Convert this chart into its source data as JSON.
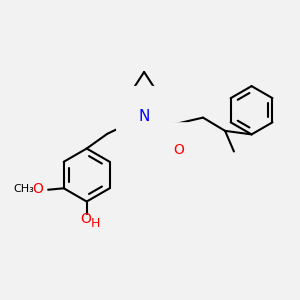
{
  "bg_color": "#f2f2f2",
  "bond_color": "#000000",
  "N_color": "#0000ff",
  "O_color": "#ff0000",
  "line_width": 1.5,
  "font_size_atom": 10,
  "font_size_small": 8,
  "xlim": [
    0,
    10
  ],
  "ylim": [
    0,
    10
  ]
}
